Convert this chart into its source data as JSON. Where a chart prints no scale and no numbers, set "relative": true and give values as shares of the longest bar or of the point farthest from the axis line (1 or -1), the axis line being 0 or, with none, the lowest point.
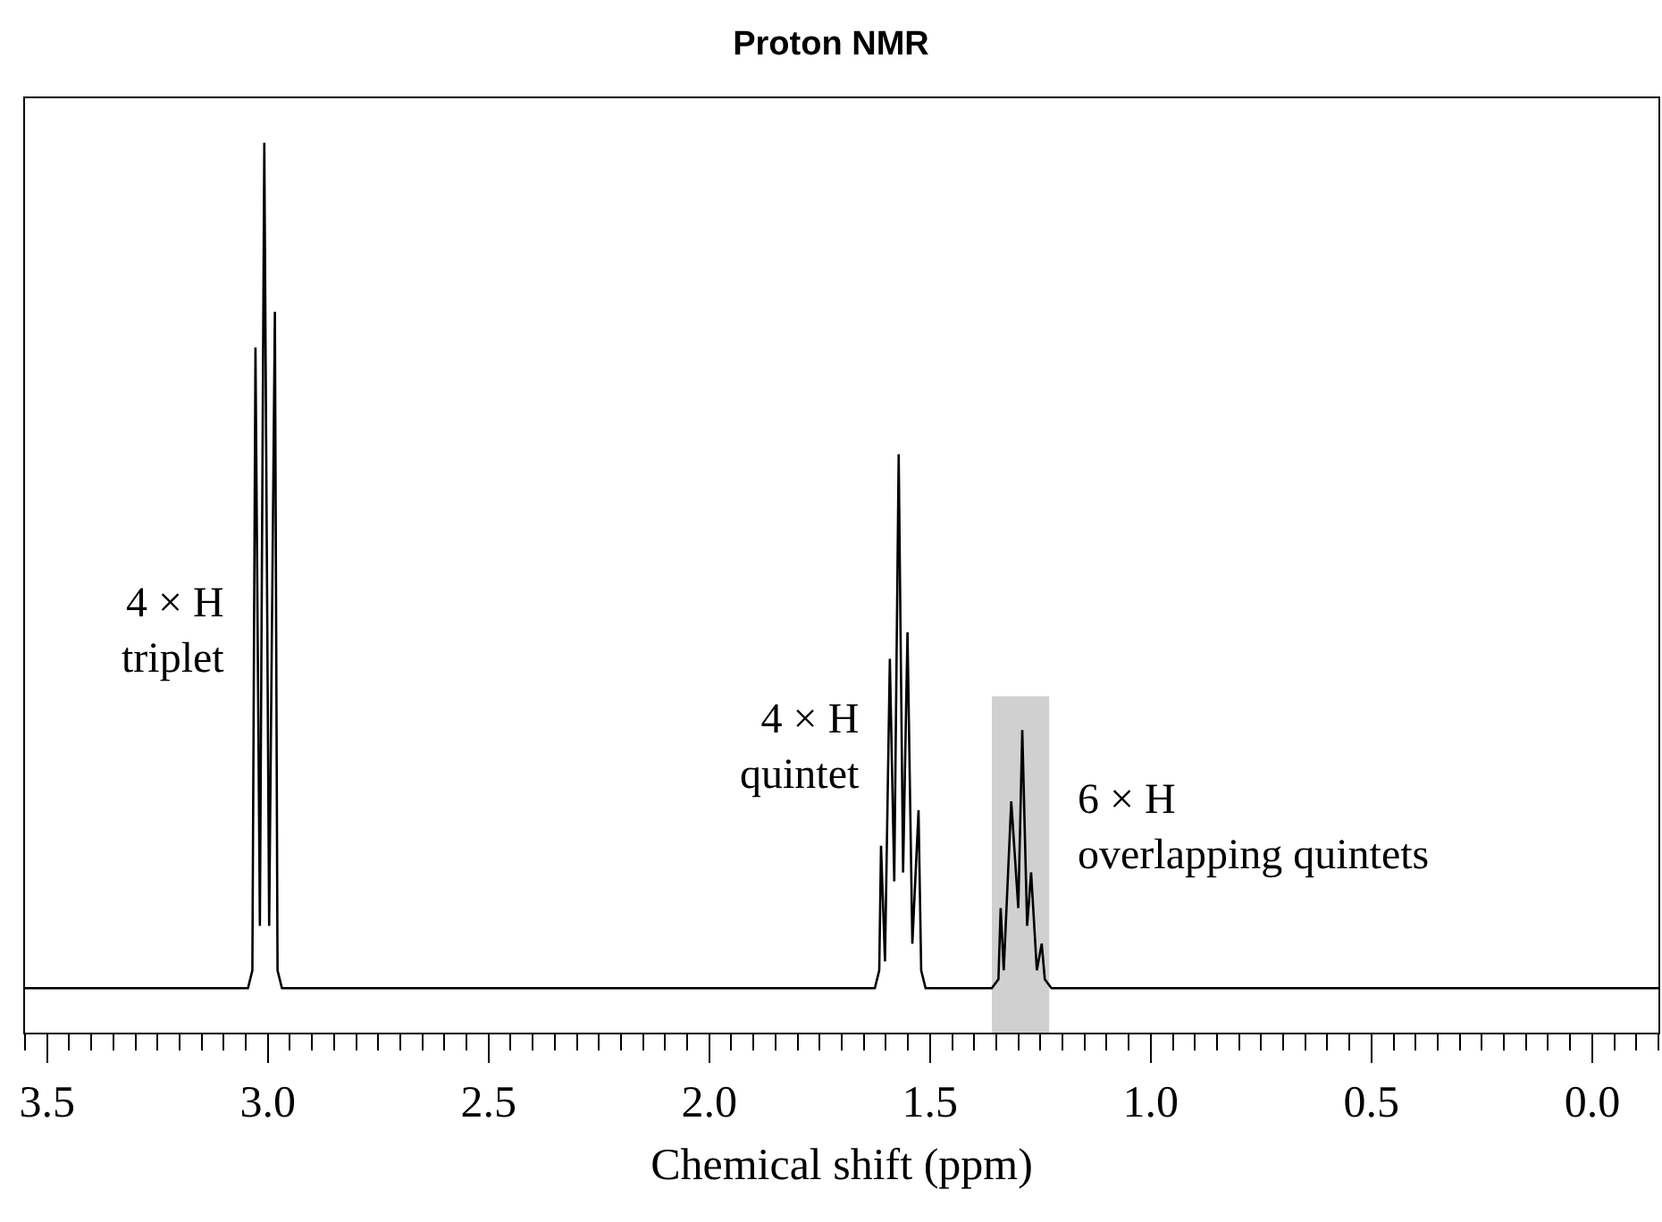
{
  "chart_data": {
    "type": "line",
    "title": "Proton NMR",
    "xlabel": "Chemical shift (ppm)",
    "relative": true,
    "color": "#000000",
    "grid": false,
    "legend": false,
    "marker": "none",
    "line_style": "solid",
    "tick_labels": "x",
    "xlim": [
      3.55,
      -0.15
    ],
    "xticks": [
      {
        "value": 3.5,
        "label": "3.5"
      },
      {
        "value": 3,
        "label": "3.0"
      },
      {
        "value": 2.5,
        "label": "2.5"
      },
      {
        "value": 2,
        "label": "2.0"
      },
      {
        "value": 1.5,
        "label": "1.5"
      },
      {
        "value": 1,
        "label": "1.0"
      },
      {
        "value": 0.5,
        "label": "0.5"
      },
      {
        "value": 0,
        "label": "0.0"
      }
    ],
    "x": [
      3.55,
      3.045,
      3.035,
      3.028,
      3.018,
      3.008,
      2.997,
      2.984,
      2.978,
      2.968,
      1.625,
      1.615,
      1.611,
      1.602,
      1.591,
      1.581,
      1.571,
      1.561,
      1.551,
      1.54,
      1.526,
      1.52,
      1.51,
      1.36,
      1.345,
      1.34,
      1.333,
      1.316,
      1.3,
      1.291,
      1.28,
      1.271,
      1.258,
      1.247,
      1.24,
      1.225,
      -0.15
    ],
    "values": [
      0.05,
      0.05,
      0.07,
      0.77,
      0.12,
      1,
      0.12,
      0.81,
      0.07,
      0.05,
      0.05,
      0.07,
      0.21,
      0.08,
      0.42,
      0.17,
      0.65,
      0.18,
      0.45,
      0.1,
      0.25,
      0.07,
      0.05,
      0.05,
      0.06,
      0.14,
      0.07,
      0.26,
      0.14,
      0.34,
      0.12,
      0.18,
      0.07,
      0.1,
      0.06,
      0.05,
      0.05
    ],
    "bands": [
      {
        "axis": "x",
        "from": 1.36,
        "to": 1.23,
        "label": null,
        "color": "#d0d0d0"
      }
    ],
    "annotations": [
      {
        "text": "4 × H\ntriplet",
        "x": 3.031,
        "y": 0.45
      },
      {
        "text": "4 × H\nquintet",
        "x": 1.594,
        "y": 0.32
      },
      {
        "text": "6 × H\noverlapping quintets",
        "x": 1.23,
        "y": 0.23
      }
    ]
  }
}
